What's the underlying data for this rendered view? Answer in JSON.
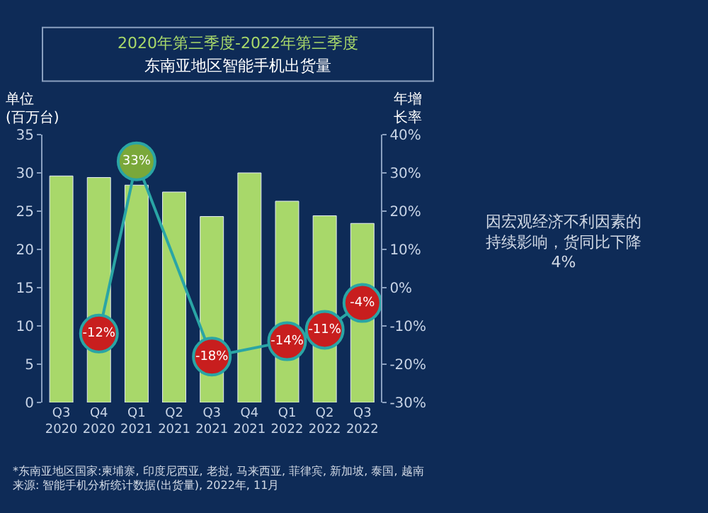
{
  "chart_data": {
    "type": "bar",
    "subtitle": "2020年第三季度-2022年第三季度",
    "title": "东南亚地区智能手机出货量",
    "ylabel": "单位\n(百万台)",
    "y2label": "年增长率",
    "categories": [
      "Q3\n2020",
      "Q4\n2020",
      "Q1\n2021",
      "Q2\n2021",
      "Q3\n2021",
      "Q4\n2021",
      "Q1\n2022",
      "Q2\n2022",
      "Q3\n2022"
    ],
    "series": [
      {
        "color": "#a8d86a",
        "values": [
          29.6,
          29.4,
          28.4,
          27.5,
          24.3,
          30.0,
          26.3,
          24.4,
          23.4
        ]
      },
      {
        "type": "line",
        "axis": "y2",
        "color": "#2aa5a5",
        "values": [
          null,
          -12,
          33,
          null,
          -18,
          null,
          -14,
          -11,
          -4
        ],
        "colors": [
          null,
          "#c81e1e",
          "#7aa83a",
          null,
          "#c81e1e",
          null,
          "#c81e1e",
          "#c81e1e",
          "#c81e1e"
        ],
        "value_labels": [
          null,
          "-12%",
          "33%",
          null,
          "-18%",
          null,
          "-14%",
          "-11%",
          "-4%"
        ]
      }
    ],
    "ylim": [
      0,
      35
    ],
    "yticks": [
      0,
      5,
      10,
      15,
      20,
      25,
      30,
      35
    ],
    "y2lim": [
      -30,
      40
    ],
    "y2ticks": [
      {
        "value": -30,
        "label": "-30%"
      },
      {
        "value": -20,
        "label": "-20%"
      },
      {
        "value": -10,
        "label": "-10%"
      },
      {
        "value": 0,
        "label": "0%"
      },
      {
        "value": 10,
        "label": "10%"
      },
      {
        "value": 20,
        "label": "20%"
      },
      {
        "value": 30,
        "label": "30%"
      },
      {
        "value": 40,
        "label": "40%"
      }
    ],
    "marker": "circle",
    "grid": false,
    "annotations": [
      "因宏观经济不利因素的持续影响，货同比下降4%",
      "*东南亚地区国家:柬埔寨, 印度尼西亚, 老挝, 马来西亚, 菲律宾, 新加坡, 泰国, 越南",
      "来源: 智能手机分析统计数据(出货量), 2022年, 11月"
    ]
  }
}
